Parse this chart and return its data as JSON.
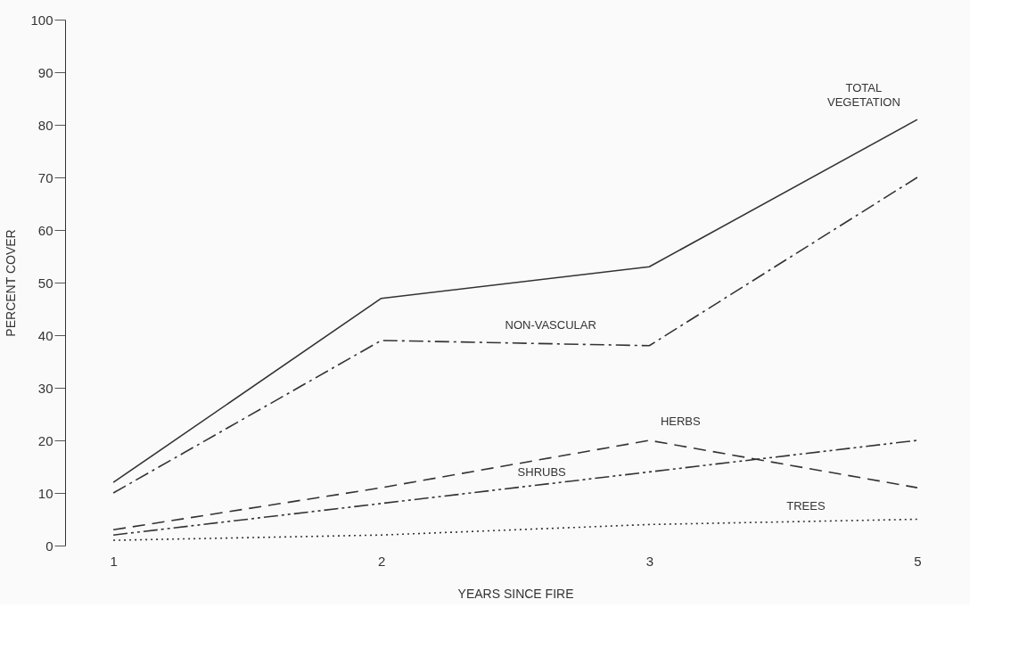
{
  "chart_data": {
    "type": "line",
    "xlabel": "YEARS SINCE FIRE",
    "ylabel": "PERCENT COVER",
    "categories": [
      "1",
      "2",
      "3",
      "5"
    ],
    "ylim": [
      0,
      100
    ],
    "yticks": [
      0,
      10,
      20,
      30,
      40,
      50,
      60,
      70,
      80,
      90,
      100
    ],
    "grid": false,
    "marker": "none",
    "series": [
      {
        "name": "TOTAL VEGETATION",
        "color": "#333333",
        "line_style": "solid",
        "values": [
          12,
          47,
          53,
          81
        ]
      },
      {
        "name": "NON-VASCULAR",
        "color": "#333333",
        "line_style": "dashdot",
        "values": [
          10,
          39,
          38,
          70
        ]
      },
      {
        "name": "HERBS",
        "color": "#333333",
        "line_style": "dashed",
        "values": [
          3,
          11,
          20,
          11
        ]
      },
      {
        "name": "SHRUBS",
        "color": "#333333",
        "line_style": "dashdotdot",
        "values": [
          2,
          8,
          14,
          20
        ]
      },
      {
        "name": "TREES",
        "color": "#333333",
        "line_style": "dotted",
        "values": [
          1,
          2,
          4,
          5
        ]
      }
    ]
  }
}
